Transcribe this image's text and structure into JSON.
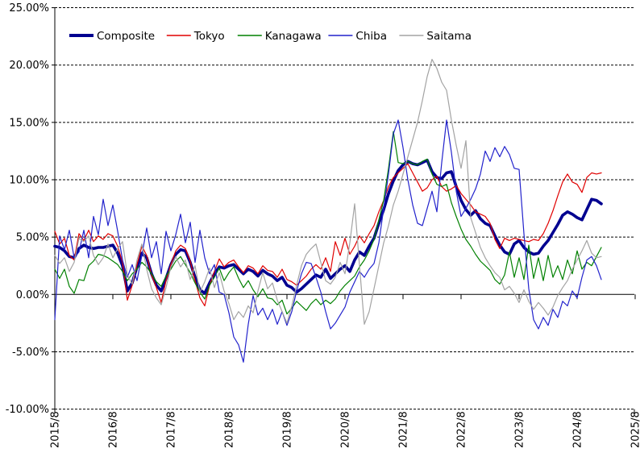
{
  "chart_data": {
    "type": "line",
    "title": "",
    "xlabel": "",
    "ylabel": "",
    "ylim": [
      -10,
      25
    ],
    "grid": "horizontal-dashed",
    "zero_axis": "solid-with-year-ticks",
    "legend_position": "top-inside",
    "y_ticks": [
      {
        "value": 25,
        "label": "25.00%"
      },
      {
        "value": 20,
        "label": "20.00%"
      },
      {
        "value": 15,
        "label": "15.00%"
      },
      {
        "value": 10,
        "label": "10.00%"
      },
      {
        "value": 5,
        "label": "5.00%"
      },
      {
        "value": 0,
        "label": "0.00%"
      },
      {
        "value": -5,
        "label": "-5.00%"
      },
      {
        "value": -10,
        "label": "-10.00%"
      }
    ],
    "x_tick_labels": [
      "2015/8",
      "2016/8",
      "2017/8",
      "2018/8",
      "2019/8",
      "2020/8",
      "2021/8",
      "2022/8",
      "2023/8",
      "2024/8",
      "2025/8"
    ],
    "x_months_per_tick": 12,
    "x_start_month": "2015/8",
    "x_end_month": "2025/1",
    "series": [
      {
        "name": "Composite",
        "color": "#000090",
        "stroke_width": 3.6,
        "values": [
          4.2,
          4.1,
          3.8,
          3.3,
          3.2,
          4.0,
          4.3,
          4.1,
          4.0,
          4.1,
          4.1,
          4.2,
          4.3,
          3.6,
          2.5,
          0.3,
          1.0,
          2.4,
          3.6,
          3.2,
          1.8,
          0.8,
          0.3,
          1.4,
          2.6,
          3.5,
          3.9,
          3.8,
          2.8,
          1.5,
          0.4,
          0.1,
          1.0,
          1.8,
          2.4,
          2.3,
          2.5,
          2.6,
          2.2,
          1.8,
          2.2,
          2.0,
          1.6,
          2.1,
          1.8,
          1.6,
          1.2,
          1.5,
          0.8,
          0.6,
          0.2,
          0.5,
          0.9,
          1.3,
          1.7,
          1.5,
          2.2,
          1.4,
          1.8,
          2.2,
          2.5,
          2.0,
          3.0,
          3.7,
          3.4,
          4.2,
          4.9,
          6.2,
          7.4,
          8.8,
          9.9,
          10.8,
          11.3,
          11.6,
          11.4,
          11.3,
          11.5,
          11.7,
          10.7,
          10.2,
          10.1,
          10.6,
          10.7,
          9.4,
          8.2,
          7.4,
          6.9,
          7.3,
          6.6,
          6.2,
          6.0,
          5.1,
          4.3,
          3.7,
          3.5,
          4.4,
          4.7,
          4.1,
          3.7,
          3.5,
          3.6,
          4.2,
          4.7,
          5.4,
          6.1,
          6.9,
          7.2,
          7.0,
          6.7,
          6.5,
          7.4,
          8.3,
          8.2,
          7.9
        ]
      },
      {
        "name": "Tokyo",
        "color": "#e00000",
        "stroke_width": 1.2,
        "values": [
          5.5,
          4.4,
          4.9,
          3.4,
          3.0,
          5.3,
          4.7,
          5.6,
          4.6,
          5.1,
          4.8,
          5.3,
          5.1,
          4.2,
          2.8,
          -0.5,
          0.8,
          2.6,
          4.2,
          3.4,
          1.7,
          0.6,
          -0.7,
          1.2,
          2.6,
          3.8,
          4.3,
          4.0,
          2.9,
          1.2,
          -0.3,
          -1.0,
          0.8,
          2.0,
          3.1,
          2.4,
          2.8,
          3.0,
          2.4,
          1.9,
          2.5,
          2.3,
          1.8,
          2.5,
          2.1,
          2.0,
          1.5,
          2.2,
          1.3,
          1.1,
          0.8,
          1.2,
          1.6,
          2.2,
          2.6,
          2.2,
          3.2,
          2.0,
          4.6,
          3.4,
          4.9,
          3.5,
          4.2,
          5.1,
          4.5,
          5.3,
          6.0,
          7.2,
          8.2,
          9.4,
          10.2,
          10.6,
          11.0,
          11.4,
          10.6,
          9.8,
          9.0,
          9.3,
          10.0,
          10.3,
          9.4,
          9.0,
          9.2,
          9.5,
          8.8,
          8.3,
          7.8,
          7.2,
          7.0,
          6.8,
          6.2,
          4.8,
          4.0,
          4.9,
          4.7,
          4.9,
          4.8,
          4.7,
          4.6,
          4.8,
          4.7,
          5.3,
          6.2,
          7.3,
          8.6,
          9.8,
          10.5,
          9.8,
          9.6,
          8.9,
          10.2,
          10.6,
          10.5,
          10.6
        ]
      },
      {
        "name": "Kanagawa",
        "color": "#008000",
        "stroke_width": 1.2,
        "values": [
          2.2,
          1.4,
          2.2,
          0.7,
          0.1,
          1.3,
          1.2,
          2.5,
          2.9,
          3.5,
          3.4,
          3.2,
          2.9,
          2.6,
          2.0,
          1.2,
          1.8,
          2.2,
          2.8,
          2.4,
          1.8,
          1.1,
          0.7,
          1.6,
          2.2,
          2.9,
          3.3,
          2.6,
          1.9,
          1.0,
          0.2,
          -0.4,
          0.8,
          1.5,
          2.3,
          1.2,
          1.9,
          2.4,
          1.4,
          0.6,
          1.2,
          0.4,
          -0.2,
          0.5,
          -0.3,
          -0.4,
          -0.9,
          -0.5,
          -1.7,
          -1.2,
          -0.6,
          -1.0,
          -1.4,
          -0.8,
          -0.4,
          -0.9,
          -0.5,
          -0.8,
          -0.4,
          0.3,
          0.8,
          1.2,
          1.6,
          2.4,
          3.0,
          3.8,
          4.8,
          6.5,
          8.2,
          11.0,
          14.2,
          11.5,
          11.4,
          11.6,
          11.4,
          11.3,
          11.6,
          11.8,
          10.5,
          9.6,
          9.4,
          9.6,
          8.0,
          6.8,
          5.7,
          4.8,
          4.2,
          3.5,
          2.9,
          2.5,
          2.1,
          1.3,
          0.9,
          1.7,
          3.7,
          1.5,
          3.2,
          1.3,
          4.3,
          1.4,
          3.2,
          1.2,
          3.4,
          1.5,
          2.5,
          1.3,
          3.0,
          1.8,
          3.8,
          2.2,
          2.8,
          2.5,
          3.3,
          4.1
        ]
      },
      {
        "name": "Chiba",
        "color": "#2222cc",
        "stroke_width": 1.2,
        "values": [
          -2.2,
          5.1,
          3.9,
          5.6,
          3.2,
          3.7,
          5.6,
          3.2,
          6.8,
          5.2,
          8.3,
          6.0,
          7.8,
          5.5,
          3.0,
          1.5,
          2.6,
          1.2,
          3.4,
          5.8,
          3.2,
          4.6,
          1.8,
          5.5,
          3.8,
          5.2,
          7.0,
          4.5,
          6.3,
          2.8,
          5.6,
          3.2,
          1.8,
          2.6,
          0.2,
          0.0,
          -1.6,
          -3.7,
          -4.4,
          -5.9,
          -2.6,
          -0.1,
          -1.8,
          -1.2,
          -2.2,
          -1.3,
          -2.6,
          -1.5,
          -2.7,
          -1.5,
          0.3,
          1.8,
          2.8,
          2.7,
          1.5,
          0.2,
          -1.5,
          -3.0,
          -2.5,
          -1.8,
          -1.1,
          0.2,
          1.1,
          2.0,
          1.5,
          2.2,
          2.7,
          4.5,
          7.5,
          10.5,
          14.0,
          15.2,
          12.8,
          10.0,
          7.8,
          6.2,
          6.0,
          7.5,
          9.0,
          7.2,
          11.5,
          15.2,
          12.4,
          9.0,
          6.8,
          7.5,
          8.3,
          9.2,
          10.5,
          12.5,
          11.6,
          12.8,
          12.0,
          12.9,
          12.2,
          11.0,
          10.9,
          5.3,
          0.5,
          -2.2,
          -3.0,
          -2.0,
          -2.7,
          -1.3,
          -2.0,
          -0.6,
          -1.0,
          0.3,
          -0.3,
          1.5,
          3.0,
          3.3,
          2.5,
          1.3
        ]
      },
      {
        "name": "Saitama",
        "color": "#a3a3a3",
        "stroke_width": 1.2,
        "values": [
          3.4,
          2.7,
          3.2,
          2.0,
          2.8,
          4.9,
          4.6,
          5.1,
          3.4,
          2.6,
          3.2,
          4.4,
          3.2,
          4.0,
          4.6,
          1.7,
          0.9,
          3.0,
          4.4,
          2.2,
          0.5,
          -0.3,
          -0.9,
          0.6,
          2.4,
          3.3,
          2.4,
          3.0,
          1.3,
          2.5,
          0.2,
          1.1,
          2.3,
          0.6,
          1.9,
          0.3,
          -0.8,
          -2.2,
          -1.5,
          -2.0,
          -1.0,
          -1.6,
          0.3,
          1.9,
          0.5,
          1.0,
          -0.5,
          -1.5,
          -2.5,
          -1.0,
          0.8,
          2.5,
          3.5,
          4.0,
          4.4,
          2.8,
          1.2,
          0.9,
          1.5,
          2.8,
          1.8,
          4.5,
          7.9,
          2.5,
          -2.6,
          -1.5,
          0.5,
          2.5,
          4.5,
          6.0,
          7.8,
          9.0,
          10.5,
          12.0,
          13.5,
          15.0,
          16.9,
          19.0,
          20.5,
          19.7,
          18.5,
          17.8,
          15.2,
          13.0,
          11.0,
          13.4,
          6.7,
          5.4,
          4.1,
          3.2,
          2.5,
          1.9,
          1.5,
          0.4,
          0.7,
          0.1,
          -0.7,
          0.4,
          -0.6,
          -1.3,
          -0.7,
          -1.2,
          -1.8,
          -1.1,
          -0.1,
          0.6,
          1.2,
          2.2,
          3.0,
          3.8,
          4.7,
          3.6,
          3.2,
          3.3
        ]
      }
    ]
  }
}
